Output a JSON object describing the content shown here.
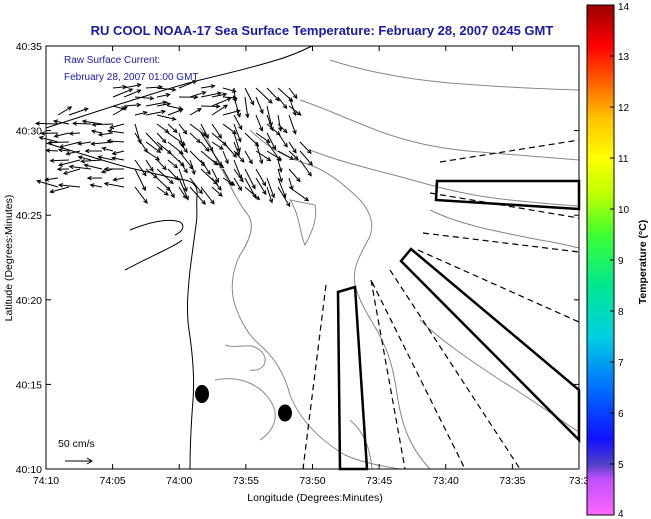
{
  "title": "RU COOL  NOAA-17  Sea Surface Temperature:  February 28, 2007 0245 GMT",
  "annotation": {
    "line1": "Raw Surface Current:",
    "line2": "February 28, 2007 01:00 GMT"
  },
  "scale_label": "50 cm/s",
  "axes": {
    "xlabel": "Longitude (Degrees:Minutes)",
    "ylabel": "Latitude (Degrees:Minutes)",
    "x_ticks": [
      "74:10",
      "74:05",
      "74:00",
      "73:55",
      "73:50",
      "73:45",
      "73:40",
      "73:35",
      "73:3"
    ],
    "y_ticks": [
      "40:35",
      "40:30",
      "40:25",
      "40:20",
      "40:15",
      "40:10"
    ]
  },
  "colorbar": {
    "label": "Temperature (°C)",
    "ticks": [
      "14",
      "13",
      "12",
      "11",
      "10",
      "9",
      "8",
      "7",
      "6",
      "5",
      "4"
    ],
    "min": 4,
    "max": 14
  },
  "colors": {
    "title": "#1a1aa8",
    "annotation": "#1a1aa8",
    "coastline": "#000000",
    "bathymetry": "#808080",
    "markers": "#000000"
  }
}
